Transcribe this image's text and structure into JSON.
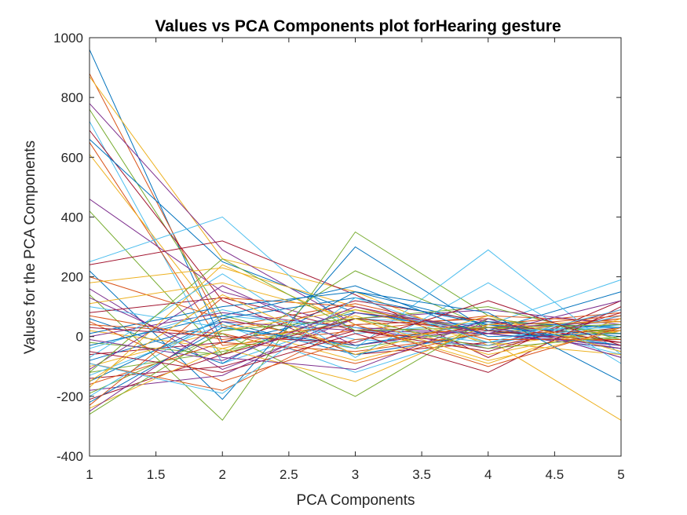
{
  "chart_data": {
    "type": "line",
    "title": "Values vs PCA Components plot forHearing gesture",
    "xlabel": "PCA Components",
    "ylabel": "Values for the PCA Components",
    "xlim": [
      1,
      5
    ],
    "ylim": [
      -400,
      1000
    ],
    "x": [
      1,
      2,
      3,
      4,
      5
    ],
    "xticks": [
      "1",
      "1.5",
      "2",
      "2.5",
      "3",
      "3.5",
      "4",
      "4.5",
      "5"
    ],
    "yticks": [
      "-400",
      "-200",
      "0",
      "200",
      "400",
      "600",
      "800",
      "1000"
    ],
    "grid": false,
    "legend": "none",
    "colors": [
      "#0072BD",
      "#D95319",
      "#EDB120",
      "#7E2F8E",
      "#77AC30",
      "#4DBEEE",
      "#A2142F"
    ],
    "series": [
      {
        "values": [
          960,
          -20,
          80,
          20,
          -30
        ]
      },
      {
        "values": [
          880,
          30,
          110,
          10,
          60
        ]
      },
      {
        "values": [
          870,
          260,
          150,
          -30,
          20
        ]
      },
      {
        "values": [
          780,
          290,
          40,
          60,
          -70
        ]
      },
      {
        "values": [
          760,
          70,
          -40,
          30,
          10
        ]
      },
      {
        "values": [
          720,
          -90,
          60,
          40,
          190
        ]
      },
      {
        "values": [
          690,
          120,
          -60,
          -20,
          30
        ]
      },
      {
        "values": [
          660,
          250,
          80,
          10,
          -40
        ]
      },
      {
        "values": [
          650,
          -30,
          20,
          70,
          50
        ]
      },
      {
        "values": [
          610,
          40,
          -80,
          30,
          -20
        ]
      },
      {
        "values": [
          460,
          150,
          30,
          -40,
          70
        ]
      },
      {
        "values": [
          420,
          -60,
          90,
          20,
          -10
        ]
      },
      {
        "values": [
          250,
          400,
          10,
          50,
          -60
        ]
      },
      {
        "values": [
          240,
          320,
          140,
          -70,
          120
        ]
      },
      {
        "values": [
          220,
          -210,
          300,
          20,
          150
        ]
      },
      {
        "values": [
          200,
          60,
          -30,
          40,
          80
        ]
      },
      {
        "values": [
          180,
          230,
          100,
          -10,
          -280
        ]
      },
      {
        "values": [
          160,
          -110,
          60,
          90,
          40
        ]
      },
      {
        "values": [
          140,
          -280,
          350,
          70,
          -50
        ]
      },
      {
        "values": [
          100,
          30,
          -40,
          290,
          -60
        ]
      },
      {
        "values": [
          80,
          130,
          20,
          -30,
          90
        ]
      },
      {
        "values": [
          60,
          -90,
          150,
          40,
          0
        ]
      },
      {
        "values": [
          40,
          10,
          -90,
          20,
          60
        ]
      },
      {
        "values": [
          20,
          -40,
          70,
          -60,
          30
        ]
      },
      {
        "values": [
          0,
          80,
          30,
          10,
          -40
        ]
      },
      {
        "values": [
          -20,
          -60,
          220,
          30,
          20
        ]
      },
      {
        "values": [
          -40,
          90,
          -10,
          -30,
          70
        ]
      },
      {
        "values": [
          -60,
          -20,
          120,
          50,
          -20
        ]
      },
      {
        "values": [
          -80,
          50,
          -60,
          10,
          40
        ]
      },
      {
        "values": [
          -90,
          -180,
          40,
          60,
          10
        ]
      },
      {
        "values": [
          -100,
          20,
          90,
          -20,
          -60
        ]
      },
      {
        "values": [
          -110,
          170,
          -30,
          30,
          50
        ]
      },
      {
        "values": [
          -120,
          -50,
          60,
          100,
          -10
        ]
      },
      {
        "values": [
          -130,
          40,
          -120,
          20,
          30
        ]
      },
      {
        "values": [
          -140,
          -100,
          20,
          -50,
          80
        ]
      },
      {
        "values": [
          -150,
          60,
          130,
          40,
          -30
        ]
      },
      {
        "values": [
          -160,
          -20,
          -50,
          10,
          20
        ]
      },
      {
        "values": [
          -170,
          240,
          40,
          -90,
          60
        ]
      },
      {
        "values": [
          -180,
          -130,
          80,
          30,
          -40
        ]
      },
      {
        "values": [
          -190,
          10,
          -200,
          60,
          10
        ]
      },
      {
        "values": [
          -200,
          70,
          30,
          -20,
          40
        ]
      },
      {
        "values": [
          -210,
          -60,
          60,
          20,
          -20
        ]
      },
      {
        "values": [
          -220,
          30,
          -30,
          50,
          30
        ]
      },
      {
        "values": [
          -230,
          130,
          100,
          -10,
          -10
        ]
      },
      {
        "values": [
          -240,
          -40,
          -150,
          40,
          50
        ]
      },
      {
        "values": [
          -250,
          50,
          20,
          10,
          -30
        ]
      },
      {
        "values": [
          -260,
          20,
          60,
          -40,
          0
        ]
      },
      {
        "values": [
          -70,
          210,
          -70,
          180,
          -90
        ]
      },
      {
        "values": [
          -50,
          -120,
          10,
          -120,
          100
        ]
      },
      {
        "values": [
          10,
          100,
          150,
          80,
          -150
        ]
      },
      {
        "values": [
          50,
          -150,
          -10,
          30,
          70
        ]
      },
      {
        "values": [
          110,
          180,
          60,
          -80,
          20
        ]
      },
      {
        "values": [
          130,
          -70,
          -110,
          60,
          -70
        ]
      },
      {
        "values": [
          -120,
          260,
          20,
          30,
          40
        ]
      },
      {
        "values": [
          -90,
          -190,
          130,
          -20,
          90
        ]
      },
      {
        "values": [
          30,
          0,
          -20,
          120,
          -30
        ]
      },
      {
        "values": [
          -30,
          70,
          170,
          0,
          10
        ]
      },
      {
        "values": [
          70,
          -10,
          40,
          -100,
          30
        ]
      },
      {
        "values": [
          -150,
          140,
          -60,
          70,
          -50
        ]
      },
      {
        "values": [
          -10,
          -80,
          100,
          10,
          120
        ]
      }
    ]
  }
}
